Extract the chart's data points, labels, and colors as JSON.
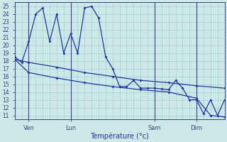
{
  "background_color": "#cce8e8",
  "grid_color": "#aacece",
  "line_color": "#2233aa",
  "xlabel": "Température (°c)",
  "ylim": [
    10.5,
    25.5
  ],
  "yticks": [
    11,
    12,
    13,
    14,
    15,
    16,
    17,
    18,
    19,
    20,
    21,
    22,
    23,
    24,
    25
  ],
  "x_tick_labels": [
    "Ven",
    "Lun",
    "Sam",
    "Dim"
  ],
  "x_tick_positions": [
    2,
    8,
    20,
    26
  ],
  "xlim": [
    0,
    30
  ],
  "vlines": [
    2,
    8,
    20,
    26
  ],
  "s1_x": [
    0,
    1,
    2,
    3,
    4,
    5,
    6,
    7,
    8,
    9,
    10,
    11,
    12,
    13,
    14,
    15,
    16,
    17,
    18,
    19,
    20,
    21,
    22,
    23,
    24,
    25,
    26,
    27,
    28,
    29,
    30
  ],
  "s1_y": [
    18.5,
    17.8,
    20.5,
    24.0,
    24.8,
    20.5,
    24.0,
    19.0,
    21.5,
    19.0,
    24.8,
    25.0,
    23.5,
    18.5,
    17.0,
    14.7,
    14.7,
    15.5,
    14.5,
    14.5,
    14.5,
    14.4,
    14.3,
    15.5,
    14.5,
    13.0,
    13.0,
    11.2,
    13.0,
    11.0,
    13.0
  ],
  "s2_x": [
    0,
    2,
    6,
    10,
    14,
    18,
    22,
    26,
    30
  ],
  "s2_y": [
    18.2,
    17.8,
    17.2,
    16.5,
    16.0,
    15.5,
    15.2,
    14.8,
    14.5
  ],
  "s3_x": [
    0,
    2,
    6,
    10,
    14,
    18,
    22,
    26,
    28,
    30
  ],
  "s3_y": [
    18.2,
    16.5,
    15.8,
    15.2,
    14.7,
    14.3,
    14.0,
    13.2,
    11.0,
    10.8
  ]
}
